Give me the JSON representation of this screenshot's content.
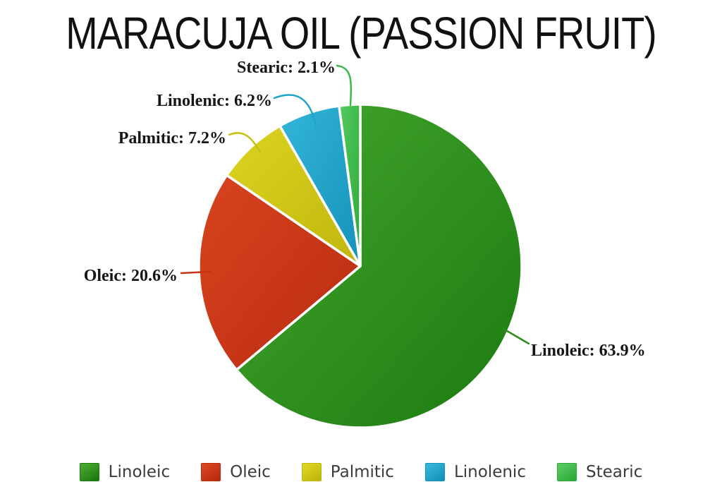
{
  "chart_data": {
    "type": "pie",
    "title": "MARACUJA OIL (PASSION FRUIT)",
    "labels": [
      "Linoleic",
      "Oleic",
      "Palmitic",
      "Linolenic",
      "Stearic"
    ],
    "values": [
      63.9,
      20.6,
      7.2,
      6.2,
      2.1
    ],
    "unit": "%",
    "start_angle": "12-oclock",
    "direction": "clockwise",
    "legend_position": "bottom",
    "background": "#ffffff",
    "title_color": "#111111",
    "label_color": "#161616",
    "legend_text_color": "#3b3b3b",
    "separator_color": "#ffffff",
    "callouts": [
      "Linoleic: 63.9%",
      "Oleic: 20.6%",
      "Palmitic: 7.2%",
      "Linolenic: 6.2%",
      "Stearic: 2.1%"
    ],
    "colors": [
      {
        "name": "green",
        "light": "#45a72e",
        "dark": "#1b7a10",
        "line": "#2e8c1c"
      },
      {
        "name": "red",
        "light": "#d8441f",
        "dark": "#b92b10",
        "line": "#c33314"
      },
      {
        "name": "yellow",
        "light": "#dcd41f",
        "dark": "#c0b60f",
        "line": "#c8bf14"
      },
      {
        "name": "cyan",
        "light": "#33b5d9",
        "dark": "#1592ba",
        "line": "#1fa3c8"
      },
      {
        "name": "light-green",
        "light": "#55c95e",
        "dark": "#2fa93a",
        "line": "#3cb94a"
      }
    ]
  }
}
